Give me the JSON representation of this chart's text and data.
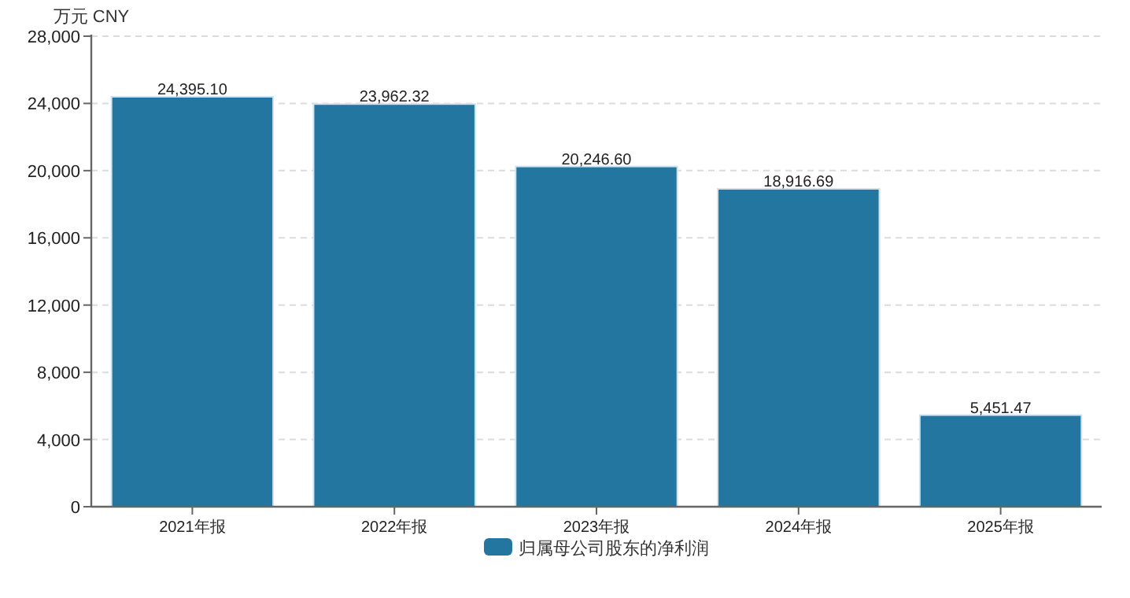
{
  "chart_data": {
    "type": "bar",
    "ylabel": "万元 CNY",
    "categories": [
      "2021年报",
      "2022年报",
      "2023年报",
      "2024年报",
      "2025年报"
    ],
    "series": [
      {
        "name": "归属母公司股东的净利润",
        "color": "#2376a0",
        "values": [
          24395.1,
          23962.32,
          20246.6,
          18916.69,
          5451.47
        ],
        "value_labels": [
          "24,395.10",
          "23,962.32",
          "20,246.60",
          "18,916.69",
          "5,451.47"
        ]
      }
    ],
    "ylim": [
      0,
      28000
    ],
    "yticks": [
      {
        "value": 0,
        "label": "0"
      },
      {
        "value": 4000,
        "label": "4,000"
      },
      {
        "value": 8000,
        "label": "8,000"
      },
      {
        "value": 12000,
        "label": "12,000"
      },
      {
        "value": 16000,
        "label": "16,000"
      },
      {
        "value": 20000,
        "label": "20,000"
      },
      {
        "value": 24000,
        "label": "24,000"
      },
      {
        "value": 28000,
        "label": "28,000"
      }
    ],
    "grid": "y",
    "legend": "bottom"
  }
}
